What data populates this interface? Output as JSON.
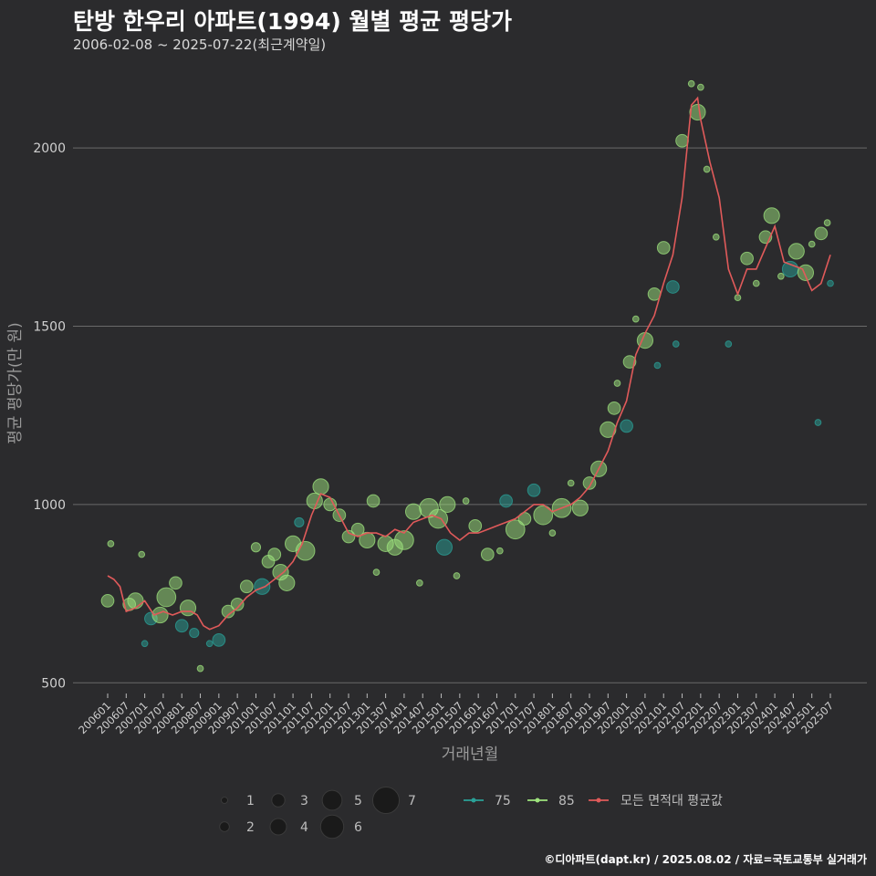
{
  "header": {
    "title": "탄방 한우리 아파트(1994) 월별 평균 평당가",
    "subtitle": "2006-02-08 ~ 2025-07-22(최근계약일)"
  },
  "footer": {
    "credit": "©디아파트(dapt.kr) / 2025.08.02 / 자료=국토교통부 실거래가"
  },
  "colors": {
    "background": "#2b2b2d",
    "grid": "#6a6a6a",
    "series_75": "#2aa198",
    "series_85": "#9ee37d",
    "series_avg": "#e05a5a"
  },
  "chart_data": {
    "type": "scatter+line",
    "title": "탄방 한우리 아파트(1994) 월별 평균 평당가",
    "xlabel": "거래년월",
    "ylabel": "평균 평당가(만 원)",
    "ylim": [
      470,
      2210
    ],
    "yticks": [
      500,
      1000,
      1500,
      2000
    ],
    "xrange": [
      "2006-01",
      "2025-07"
    ],
    "xticks": [
      "200601",
      "200607",
      "200701",
      "200707",
      "200801",
      "200807",
      "200901",
      "200907",
      "201001",
      "201007",
      "201101",
      "201107",
      "201201",
      "201207",
      "201301",
      "201307",
      "201401",
      "201407",
      "201501",
      "201507",
      "201601",
      "201607",
      "201701",
      "201707",
      "201801",
      "201807",
      "201901",
      "201907",
      "202001",
      "202007",
      "202101",
      "202107",
      "202201",
      "202207",
      "202301",
      "202307",
      "202401",
      "202407",
      "202501",
      "202507"
    ],
    "size_legend": {
      "title": "",
      "values": [
        1,
        2,
        3,
        4,
        5,
        6,
        7
      ]
    },
    "series_legend": [
      {
        "name": "75",
        "color": "#2aa198",
        "kind": "point"
      },
      {
        "name": "85",
        "color": "#9ee37d",
        "kind": "point"
      },
      {
        "name": "모든 면적대 평균값",
        "color": "#e05a5a",
        "kind": "line"
      }
    ],
    "average_line": {
      "name": "모든 면적대 평균값",
      "points": [
        [
          "2006-01",
          800
        ],
        [
          "2006-03",
          790
        ],
        [
          "2006-05",
          770
        ],
        [
          "2006-07",
          700
        ],
        [
          "2006-10",
          710
        ],
        [
          "2007-01",
          730
        ],
        [
          "2007-04",
          690
        ],
        [
          "2007-07",
          700
        ],
        [
          "2007-10",
          690
        ],
        [
          "2008-01",
          700
        ],
        [
          "2008-04",
          700
        ],
        [
          "2008-06",
          690
        ],
        [
          "2008-08",
          660
        ],
        [
          "2008-10",
          650
        ],
        [
          "2009-01",
          660
        ],
        [
          "2009-04",
          690
        ],
        [
          "2009-07",
          710
        ],
        [
          "2009-10",
          740
        ],
        [
          "2010-01",
          760
        ],
        [
          "2010-04",
          770
        ],
        [
          "2010-07",
          790
        ],
        [
          "2010-10",
          810
        ],
        [
          "2011-01",
          840
        ],
        [
          "2011-04",
          890
        ],
        [
          "2011-07",
          970
        ],
        [
          "2011-10",
          1030
        ],
        [
          "2012-01",
          1020
        ],
        [
          "2012-04",
          970
        ],
        [
          "2012-07",
          920
        ],
        [
          "2012-10",
          910
        ],
        [
          "2013-01",
          920
        ],
        [
          "2013-04",
          920
        ],
        [
          "2013-07",
          910
        ],
        [
          "2013-10",
          930
        ],
        [
          "2014-01",
          920
        ],
        [
          "2014-04",
          950
        ],
        [
          "2014-07",
          960
        ],
        [
          "2014-10",
          970
        ],
        [
          "2015-01",
          960
        ],
        [
          "2015-04",
          920
        ],
        [
          "2015-07",
          900
        ],
        [
          "2015-10",
          920
        ],
        [
          "2016-01",
          920
        ],
        [
          "2016-04",
          930
        ],
        [
          "2016-07",
          940
        ],
        [
          "2016-10",
          950
        ],
        [
          "2017-01",
          960
        ],
        [
          "2017-04",
          980
        ],
        [
          "2017-07",
          1000
        ],
        [
          "2017-10",
          1000
        ],
        [
          "2018-01",
          980
        ],
        [
          "2018-04",
          990
        ],
        [
          "2018-07",
          1000
        ],
        [
          "2018-10",
          1020
        ],
        [
          "2019-01",
          1050
        ],
        [
          "2019-04",
          1100
        ],
        [
          "2019-07",
          1150
        ],
        [
          "2019-10",
          1230
        ],
        [
          "2020-01",
          1290
        ],
        [
          "2020-04",
          1420
        ],
        [
          "2020-07",
          1480
        ],
        [
          "2020-10",
          1530
        ],
        [
          "2021-01",
          1620
        ],
        [
          "2021-04",
          1700
        ],
        [
          "2021-07",
          1860
        ],
        [
          "2021-10",
          2120
        ],
        [
          "2021-12",
          2140
        ],
        [
          "2022-01",
          2080
        ],
        [
          "2022-04",
          1960
        ],
        [
          "2022-07",
          1860
        ],
        [
          "2022-10",
          1660
        ],
        [
          "2023-01",
          1590
        ],
        [
          "2023-04",
          1660
        ],
        [
          "2023-07",
          1660
        ],
        [
          "2023-10",
          1720
        ],
        [
          "2024-01",
          1780
        ],
        [
          "2024-04",
          1680
        ],
        [
          "2024-07",
          1670
        ],
        [
          "2024-10",
          1660
        ],
        [
          "2025-01",
          1600
        ],
        [
          "2025-04",
          1620
        ],
        [
          "2025-07",
          1700
        ]
      ]
    },
    "scatter_points": [
      {
        "x": "2006-01",
        "y": 730,
        "size": 3,
        "area": "85"
      },
      {
        "x": "2006-02",
        "y": 890,
        "size": 1,
        "area": "85"
      },
      {
        "x": "2006-08",
        "y": 720,
        "size": 3,
        "area": "85"
      },
      {
        "x": "2006-10",
        "y": 730,
        "size": 4,
        "area": "85"
      },
      {
        "x": "2006-12",
        "y": 860,
        "size": 1,
        "area": "85"
      },
      {
        "x": "2007-01",
        "y": 610,
        "size": 1,
        "area": "75"
      },
      {
        "x": "2007-03",
        "y": 680,
        "size": 3,
        "area": "75"
      },
      {
        "x": "2007-06",
        "y": 690,
        "size": 4,
        "area": "85"
      },
      {
        "x": "2007-08",
        "y": 740,
        "size": 5,
        "area": "85"
      },
      {
        "x": "2007-11",
        "y": 780,
        "size": 3,
        "area": "85"
      },
      {
        "x": "2008-01",
        "y": 660,
        "size": 3,
        "area": "75"
      },
      {
        "x": "2008-03",
        "y": 710,
        "size": 4,
        "area": "85"
      },
      {
        "x": "2008-05",
        "y": 640,
        "size": 2,
        "area": "75"
      },
      {
        "x": "2008-07",
        "y": 540,
        "size": 1,
        "area": "85"
      },
      {
        "x": "2008-10",
        "y": 610,
        "size": 1,
        "area": "75"
      },
      {
        "x": "2009-01",
        "y": 620,
        "size": 3,
        "area": "75"
      },
      {
        "x": "2009-04",
        "y": 700,
        "size": 3,
        "area": "85"
      },
      {
        "x": "2009-07",
        "y": 720,
        "size": 3,
        "area": "85"
      },
      {
        "x": "2009-10",
        "y": 770,
        "size": 3,
        "area": "85"
      },
      {
        "x": "2010-01",
        "y": 880,
        "size": 2,
        "area": "85"
      },
      {
        "x": "2010-03",
        "y": 770,
        "size": 4,
        "area": "75"
      },
      {
        "x": "2010-05",
        "y": 840,
        "size": 3,
        "area": "85"
      },
      {
        "x": "2010-07",
        "y": 860,
        "size": 3,
        "area": "85"
      },
      {
        "x": "2010-09",
        "y": 810,
        "size": 4,
        "area": "85"
      },
      {
        "x": "2010-11",
        "y": 780,
        "size": 4,
        "area": "85"
      },
      {
        "x": "2011-01",
        "y": 890,
        "size": 4,
        "area": "85"
      },
      {
        "x": "2011-03",
        "y": 950,
        "size": 2,
        "area": "75"
      },
      {
        "x": "2011-05",
        "y": 870,
        "size": 5,
        "area": "85"
      },
      {
        "x": "2011-08",
        "y": 1010,
        "size": 4,
        "area": "85"
      },
      {
        "x": "2011-10",
        "y": 1050,
        "size": 4,
        "area": "85"
      },
      {
        "x": "2012-01",
        "y": 1000,
        "size": 3,
        "area": "85"
      },
      {
        "x": "2012-04",
        "y": 970,
        "size": 3,
        "area": "85"
      },
      {
        "x": "2012-07",
        "y": 910,
        "size": 3,
        "area": "85"
      },
      {
        "x": "2012-10",
        "y": 930,
        "size": 3,
        "area": "85"
      },
      {
        "x": "2013-01",
        "y": 900,
        "size": 4,
        "area": "85"
      },
      {
        "x": "2013-03",
        "y": 1010,
        "size": 3,
        "area": "85"
      },
      {
        "x": "2013-04",
        "y": 810,
        "size": 1,
        "area": "85"
      },
      {
        "x": "2013-07",
        "y": 890,
        "size": 4,
        "area": "85"
      },
      {
        "x": "2013-10",
        "y": 880,
        "size": 4,
        "area": "85"
      },
      {
        "x": "2014-01",
        "y": 900,
        "size": 5,
        "area": "85"
      },
      {
        "x": "2014-04",
        "y": 980,
        "size": 4,
        "area": "85"
      },
      {
        "x": "2014-06",
        "y": 780,
        "size": 1,
        "area": "85"
      },
      {
        "x": "2014-09",
        "y": 990,
        "size": 5,
        "area": "85"
      },
      {
        "x": "2014-12",
        "y": 960,
        "size": 5,
        "area": "85"
      },
      {
        "x": "2015-02",
        "y": 880,
        "size": 4,
        "area": "75"
      },
      {
        "x": "2015-03",
        "y": 1000,
        "size": 4,
        "area": "85"
      },
      {
        "x": "2015-06",
        "y": 800,
        "size": 1,
        "area": "85"
      },
      {
        "x": "2015-09",
        "y": 1010,
        "size": 1,
        "area": "85"
      },
      {
        "x": "2015-12",
        "y": 940,
        "size": 3,
        "area": "85"
      },
      {
        "x": "2016-04",
        "y": 860,
        "size": 3,
        "area": "85"
      },
      {
        "x": "2016-08",
        "y": 870,
        "size": 1,
        "area": "85"
      },
      {
        "x": "2016-10",
        "y": 1010,
        "size": 3,
        "area": "75"
      },
      {
        "x": "2017-01",
        "y": 930,
        "size": 5,
        "area": "85"
      },
      {
        "x": "2017-04",
        "y": 960,
        "size": 3,
        "area": "85"
      },
      {
        "x": "2017-07",
        "y": 1040,
        "size": 3,
        "area": "75"
      },
      {
        "x": "2017-10",
        "y": 970,
        "size": 5,
        "area": "85"
      },
      {
        "x": "2018-01",
        "y": 920,
        "size": 1,
        "area": "85"
      },
      {
        "x": "2018-04",
        "y": 990,
        "size": 5,
        "area": "85"
      },
      {
        "x": "2018-07",
        "y": 1060,
        "size": 1,
        "area": "85"
      },
      {
        "x": "2018-10",
        "y": 990,
        "size": 4,
        "area": "85"
      },
      {
        "x": "2019-01",
        "y": 1060,
        "size": 3,
        "area": "85"
      },
      {
        "x": "2019-04",
        "y": 1100,
        "size": 4,
        "area": "85"
      },
      {
        "x": "2019-07",
        "y": 1210,
        "size": 4,
        "area": "85"
      },
      {
        "x": "2019-09",
        "y": 1270,
        "size": 3,
        "area": "85"
      },
      {
        "x": "2019-10",
        "y": 1340,
        "size": 1,
        "area": "85"
      },
      {
        "x": "2020-01",
        "y": 1220,
        "size": 3,
        "area": "75"
      },
      {
        "x": "2020-02",
        "y": 1400,
        "size": 3,
        "area": "85"
      },
      {
        "x": "2020-04",
        "y": 1520,
        "size": 1,
        "area": "85"
      },
      {
        "x": "2020-07",
        "y": 1460,
        "size": 4,
        "area": "85"
      },
      {
        "x": "2020-10",
        "y": 1590,
        "size": 3,
        "area": "85"
      },
      {
        "x": "2020-11",
        "y": 1390,
        "size": 1,
        "area": "75"
      },
      {
        "x": "2021-01",
        "y": 1720,
        "size": 3,
        "area": "85"
      },
      {
        "x": "2021-04",
        "y": 1610,
        "size": 3,
        "area": "75"
      },
      {
        "x": "2021-05",
        "y": 1450,
        "size": 1,
        "area": "75"
      },
      {
        "x": "2021-07",
        "y": 2020,
        "size": 3,
        "area": "85"
      },
      {
        "x": "2021-10",
        "y": 2180,
        "size": 1,
        "area": "85"
      },
      {
        "x": "2021-12",
        "y": 2100,
        "size": 4,
        "area": "85"
      },
      {
        "x": "2022-01",
        "y": 2170,
        "size": 1,
        "area": "85"
      },
      {
        "x": "2022-03",
        "y": 1940,
        "size": 1,
        "area": "85"
      },
      {
        "x": "2022-06",
        "y": 1750,
        "size": 1,
        "area": "85"
      },
      {
        "x": "2022-10",
        "y": 1450,
        "size": 1,
        "area": "75"
      },
      {
        "x": "2023-01",
        "y": 1580,
        "size": 1,
        "area": "85"
      },
      {
        "x": "2023-04",
        "y": 1690,
        "size": 3,
        "area": "85"
      },
      {
        "x": "2023-07",
        "y": 1620,
        "size": 1,
        "area": "85"
      },
      {
        "x": "2023-10",
        "y": 1750,
        "size": 3,
        "area": "85"
      },
      {
        "x": "2023-12",
        "y": 1810,
        "size": 4,
        "area": "85"
      },
      {
        "x": "2024-03",
        "y": 1640,
        "size": 1,
        "area": "85"
      },
      {
        "x": "2024-06",
        "y": 1660,
        "size": 4,
        "area": "75"
      },
      {
        "x": "2024-08",
        "y": 1710,
        "size": 4,
        "area": "85"
      },
      {
        "x": "2024-11",
        "y": 1650,
        "size": 4,
        "area": "85"
      },
      {
        "x": "2025-01",
        "y": 1730,
        "size": 1,
        "area": "85"
      },
      {
        "x": "2025-03",
        "y": 1230,
        "size": 1,
        "area": "75"
      },
      {
        "x": "2025-04",
        "y": 1760,
        "size": 3,
        "area": "85"
      },
      {
        "x": "2025-06",
        "y": 1790,
        "size": 1,
        "area": "85"
      },
      {
        "x": "2025-07",
        "y": 1620,
        "size": 1,
        "area": "75"
      }
    ]
  }
}
